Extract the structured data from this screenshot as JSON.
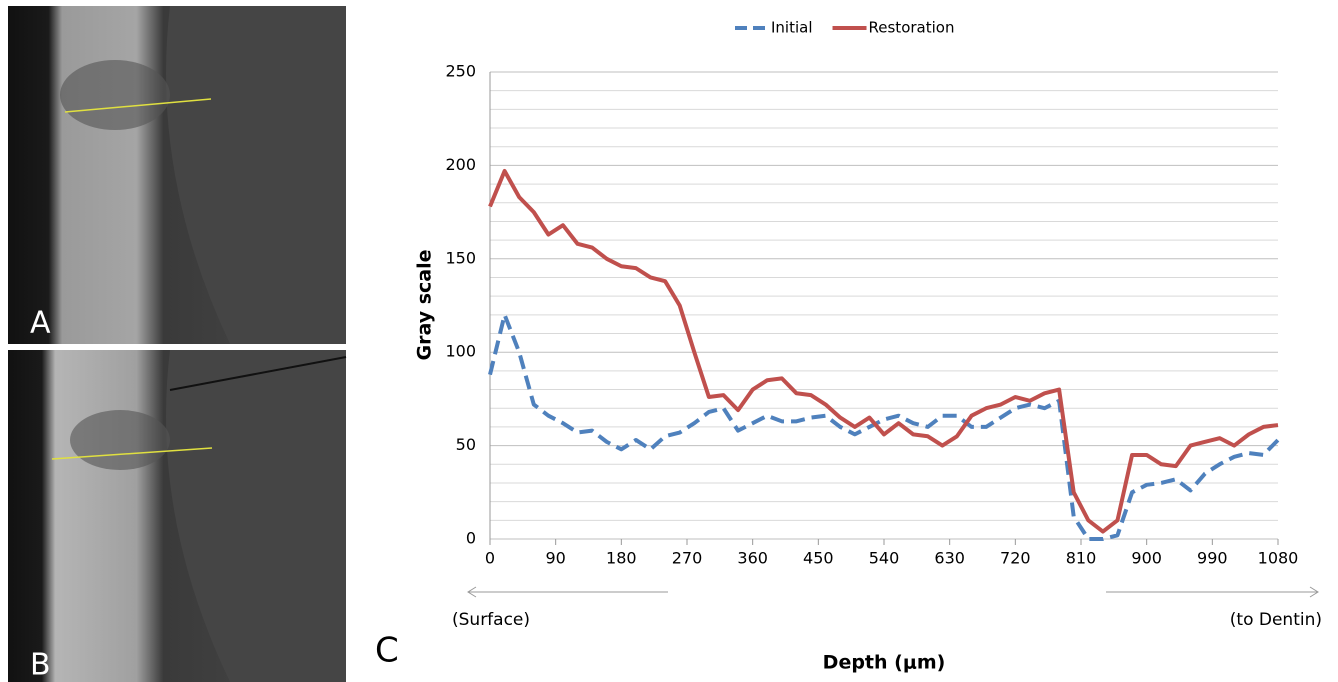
{
  "panels": [
    "A",
    "B"
  ],
  "chart_data": {
    "type": "line",
    "panel_label": "C",
    "ylabel": "Gray scale",
    "xlabel": "Depth (μm)",
    "annotations": [
      "(Surface)",
      "(to Dentin)"
    ],
    "x": [
      0,
      20,
      40,
      60,
      80,
      100,
      120,
      140,
      160,
      180,
      200,
      220,
      240,
      260,
      280,
      300,
      320,
      340,
      360,
      380,
      400,
      420,
      440,
      460,
      480,
      500,
      520,
      540,
      560,
      580,
      600,
      620,
      640,
      660,
      680,
      700,
      720,
      740,
      760,
      780,
      800,
      820,
      840,
      860,
      880,
      900,
      920,
      940,
      960,
      980,
      1000,
      1020,
      1040,
      1060,
      1080
    ],
    "series": [
      {
        "name": "Initial",
        "color": "#4f81bd",
        "dash": true,
        "values": [
          88,
          120,
          100,
          72,
          66,
          62,
          57,
          58,
          52,
          48,
          53,
          48,
          55,
          57,
          62,
          68,
          70,
          58,
          62,
          66,
          63,
          63,
          65,
          66,
          60,
          56,
          60,
          64,
          66,
          62,
          60,
          66,
          66,
          60,
          60,
          65,
          70,
          72,
          70,
          74,
          12,
          0,
          0,
          2,
          25,
          29,
          30,
          32,
          26,
          35,
          40,
          44,
          46,
          45,
          53
        ]
      },
      {
        "name": "Restoration",
        "color": "#c0504d",
        "dash": false,
        "values": [
          178,
          197,
          183,
          175,
          163,
          168,
          158,
          156,
          150,
          146,
          145,
          140,
          138,
          125,
          100,
          76,
          77,
          69,
          80,
          85,
          86,
          78,
          77,
          72,
          65,
          60,
          65,
          56,
          62,
          56,
          55,
          50,
          55,
          66,
          70,
          72,
          76,
          74,
          78,
          80,
          25,
          10,
          4,
          10,
          45,
          45,
          40,
          39,
          50,
          52,
          54,
          50,
          56,
          60,
          61
        ]
      }
    ],
    "xlim": [
      0,
      1080
    ],
    "xticks": [
      0,
      90,
      180,
      270,
      360,
      450,
      540,
      630,
      720,
      810,
      900,
      990,
      1080
    ],
    "ylim": [
      0,
      250
    ],
    "yticks": [
      0,
      50,
      100,
      150,
      200,
      250
    ],
    "minor_yticks": [
      10,
      20,
      30,
      40,
      60,
      70,
      80,
      90,
      110,
      120,
      130,
      140,
      160,
      170,
      180,
      190,
      210,
      220,
      230,
      240
    ],
    "grid": true,
    "legend": "top"
  }
}
